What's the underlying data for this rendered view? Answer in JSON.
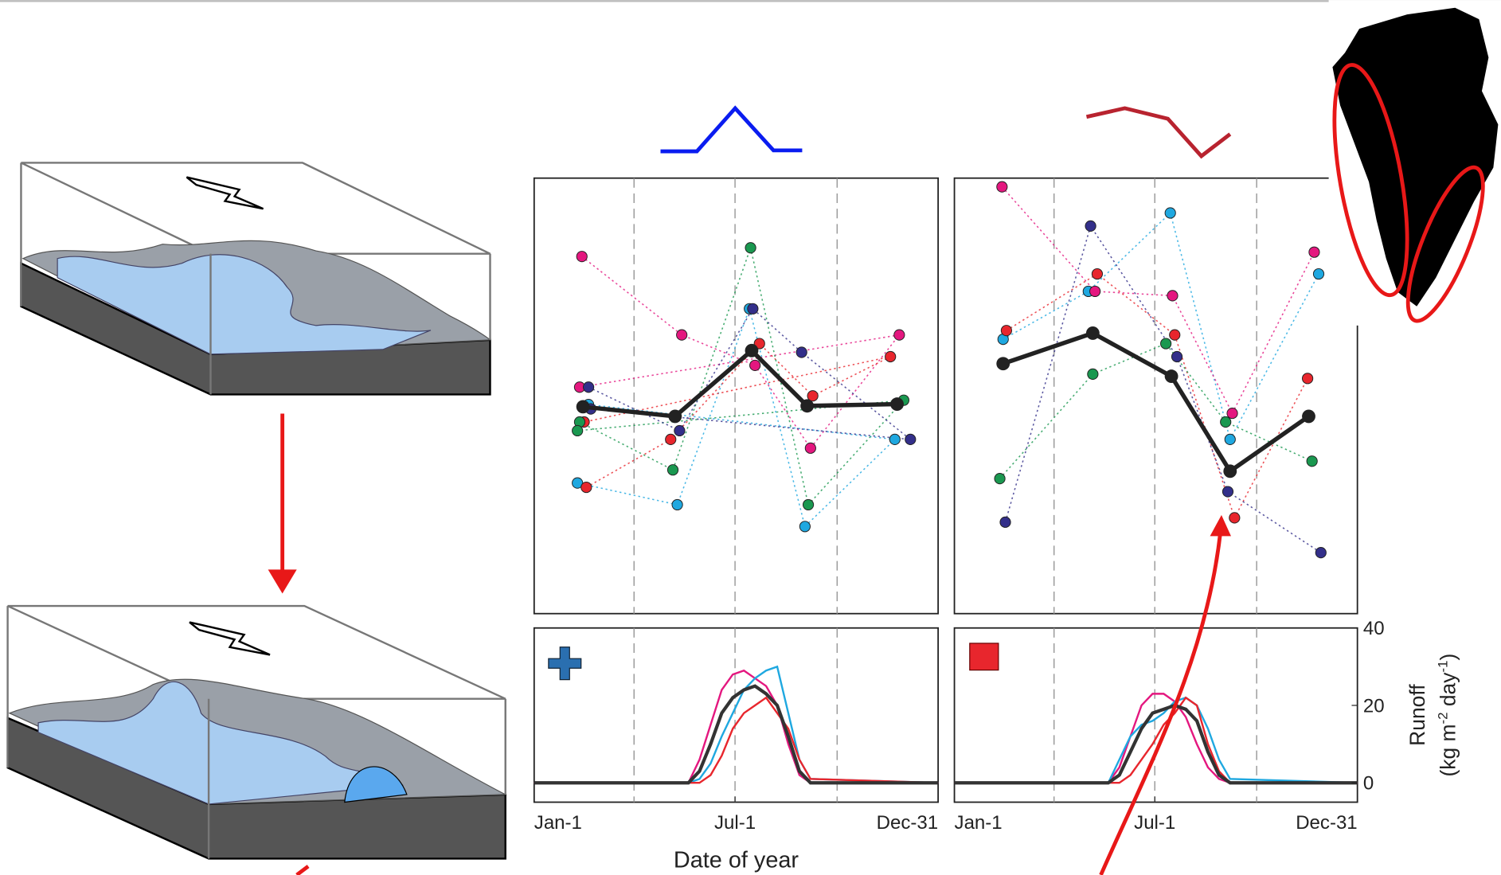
{
  "chart_data": [
    {
      "type": "scatter",
      "xlim": [
        1,
        365
      ],
      "ylim": [
        0,
        100
      ],
      "vlines": [
        91,
        182,
        274
      ],
      "series": [
        {
          "color": "#1fa8e0",
          "x": [
            40,
            130,
            195,
            245,
            326,
            50
          ],
          "values": [
            30,
            25,
            70,
            20,
            40,
            48
          ]
        },
        {
          "color": "#e4177f",
          "x": [
            44,
            134,
            200,
            250,
            330,
            42
          ],
          "values": [
            82,
            64,
            57,
            38,
            64,
            52
          ]
        },
        {
          "color": "#e8262d",
          "x": [
            48,
            124,
            204,
            252,
            322,
            46
          ],
          "values": [
            29,
            40,
            62,
            50,
            59,
            44
          ]
        },
        {
          "color": "#1a9850",
          "x": [
            42,
            126,
            196,
            248,
            334,
            40
          ],
          "values": [
            44,
            33,
            84,
            25,
            49,
            42
          ]
        },
        {
          "color": "#332f8a",
          "x": [
            50,
            132,
            198,
            242,
            340,
            52
          ],
          "values": [
            52,
            42,
            70,
            60,
            40,
            47
          ]
        }
      ],
      "mean": {
        "color": "#222222",
        "x": [
          45,
          128,
          197,
          247,
          328
        ],
        "values": [
          47.5,
          45.3,
          60.4,
          47.7,
          48.1
        ]
      }
    },
    {
      "type": "scatter",
      "xlim": [
        1,
        365
      ],
      "ylim": [
        0,
        100
      ],
      "vlines": [
        91,
        182,
        274
      ],
      "series": [
        {
          "color": "#1fa8e0",
          "x": [
            45,
            122,
            196,
            250,
            330
          ],
          "values": [
            63,
            74,
            92,
            40,
            78
          ]
        },
        {
          "color": "#e4177f",
          "x": [
            44,
            128,
            198,
            252,
            326
          ],
          "values": [
            98,
            74,
            73,
            46,
            83
          ]
        },
        {
          "color": "#e8262d",
          "x": [
            48,
            130,
            200,
            254,
            320
          ],
          "values": [
            65,
            78,
            64,
            22,
            54
          ]
        },
        {
          "color": "#1a9850",
          "x": [
            42,
            126,
            192,
            246,
            324
          ],
          "values": [
            31,
            55,
            62,
            44,
            35
          ]
        },
        {
          "color": "#332f8a",
          "x": [
            47,
            124,
            202,
            248,
            332
          ],
          "values": [
            21,
            89,
            59,
            28,
            14
          ]
        }
      ],
      "mean": {
        "color": "#222222",
        "x": [
          45,
          126,
          197,
          250,
          321
        ],
        "values": [
          57.4,
          64.4,
          54.5,
          32.7,
          45.3
        ]
      }
    },
    {
      "type": "line",
      "xlim": [
        1,
        365
      ],
      "ylim": [
        -5,
        40
      ],
      "vlines": [
        91,
        182,
        274
      ],
      "xticks": [
        {
          "value": 1,
          "label": "Jan-1"
        },
        {
          "value": 182,
          "label": "Jul-1"
        },
        {
          "value": 365,
          "label": "Dec-31"
        }
      ],
      "x_label": "Date of year",
      "series": [
        {
          "color": "#e4177f",
          "x": [
            1,
            140,
            150,
            160,
            170,
            180,
            190,
            200,
            210,
            220,
            230,
            240,
            250,
            365
          ],
          "values": [
            0,
            0,
            6,
            15,
            24,
            28,
            29,
            27,
            25,
            20,
            10,
            2,
            0,
            0
          ]
        },
        {
          "color": "#1fa8e0",
          "x": [
            1,
            140,
            150,
            160,
            170,
            180,
            190,
            200,
            210,
            220,
            230,
            240,
            250,
            365
          ],
          "values": [
            0,
            0,
            1,
            5,
            12,
            18,
            24,
            27,
            29,
            30,
            18,
            6,
            1,
            0
          ]
        },
        {
          "color": "#e8262d",
          "x": [
            1,
            140,
            150,
            160,
            170,
            180,
            190,
            200,
            210,
            220,
            230,
            240,
            250,
            365
          ],
          "values": [
            0,
            0,
            0,
            2,
            7,
            14,
            18,
            20,
            22,
            18,
            14,
            6,
            1,
            0
          ]
        },
        {
          "color": "#333333",
          "x": [
            1,
            140,
            150,
            160,
            170,
            180,
            190,
            200,
            210,
            220,
            230,
            240,
            250,
            365
          ],
          "values": [
            0,
            0,
            3,
            10,
            18,
            22,
            24,
            25,
            23,
            20,
            12,
            3,
            0,
            0
          ]
        }
      ]
    },
    {
      "type": "line",
      "xlim": [
        1,
        365
      ],
      "ylim": [
        -5,
        40
      ],
      "vlines": [
        91,
        182,
        274
      ],
      "xticks": [
        {
          "value": 1,
          "label": "Jan-1"
        },
        {
          "value": 182,
          "label": "Jul-1"
        },
        {
          "value": 365,
          "label": "Dec-31"
        }
      ],
      "yticks": [
        0,
        20,
        40
      ],
      "y_label": "Runoff",
      "y_label_units": [
        "(kg m",
        "-2",
        " day",
        "-1",
        ")"
      ],
      "series": [
        {
          "color": "#e4177f",
          "x": [
            1,
            140,
            150,
            160,
            170,
            180,
            190,
            200,
            210,
            220,
            230,
            240,
            250,
            365
          ],
          "values": [
            0,
            0,
            4,
            12,
            20,
            23,
            23,
            21,
            17,
            10,
            4,
            1,
            0,
            0
          ]
        },
        {
          "color": "#1fa8e0",
          "x": [
            1,
            140,
            150,
            160,
            170,
            180,
            190,
            200,
            210,
            220,
            230,
            240,
            250,
            365
          ],
          "values": [
            0,
            0,
            6,
            12,
            15,
            16,
            18,
            21,
            22,
            20,
            14,
            6,
            1,
            0
          ]
        },
        {
          "color": "#e8262d",
          "x": [
            1,
            140,
            150,
            160,
            170,
            180,
            190,
            200,
            210,
            220,
            230,
            240,
            250,
            365
          ],
          "values": [
            0,
            0,
            0,
            2,
            6,
            10,
            15,
            18,
            22,
            20,
            10,
            3,
            0,
            0
          ]
        },
        {
          "color": "#333333",
          "x": [
            1,
            140,
            150,
            160,
            170,
            180,
            190,
            200,
            210,
            220,
            230,
            240,
            250,
            365
          ],
          "values": [
            0,
            0,
            2,
            8,
            14,
            18,
            19,
            20,
            19,
            16,
            8,
            2,
            0,
            0
          ]
        }
      ]
    }
  ]
}
